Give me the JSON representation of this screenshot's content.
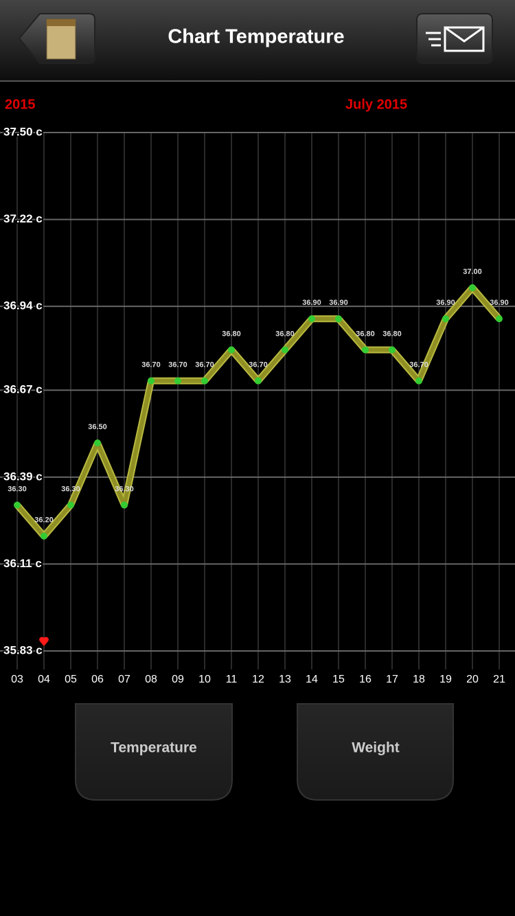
{
  "header": {
    "title": "Chart Temperature"
  },
  "chart_data": {
    "type": "line",
    "month_labels": [
      "2015",
      "July 2015"
    ],
    "categories": [
      "03",
      "04",
      "05",
      "06",
      "07",
      "08",
      "09",
      "10",
      "11",
      "12",
      "13",
      "14",
      "15",
      "16",
      "17",
      "18",
      "19",
      "20",
      "21"
    ],
    "values": [
      36.3,
      36.2,
      36.3,
      36.5,
      36.3,
      36.7,
      36.7,
      36.7,
      36.8,
      36.7,
      36.8,
      36.9,
      36.9,
      36.8,
      36.8,
      36.7,
      36.9,
      37.0,
      36.9
    ],
    "value_labels": [
      "36.30",
      "36.20",
      "36.30",
      "36.50",
      "36.30",
      "36.70",
      "36.70",
      "36.70",
      "36.80",
      "36.70",
      "36.80",
      "36.90",
      "36.90",
      "36.80",
      "36.80",
      "36.70",
      "36.90",
      "37.00",
      "36.90"
    ],
    "color": "#8f8f24",
    "ylim": [
      35.83,
      37.5
    ],
    "yticks": [
      {
        "value": 37.5,
        "label": "37.50 c"
      },
      {
        "value": 37.22,
        "label": "37.22 c"
      },
      {
        "value": 36.94,
        "label": "36.94 c"
      },
      {
        "value": 36.67,
        "label": "36.67 c"
      },
      {
        "value": 36.39,
        "label": "36.39 c"
      },
      {
        "value": 36.11,
        "label": "36.11 c"
      },
      {
        "value": 35.83,
        "label": "35.83 c"
      }
    ],
    "grid": true
  },
  "buttons": [
    "Temperature",
    "Weight"
  ]
}
